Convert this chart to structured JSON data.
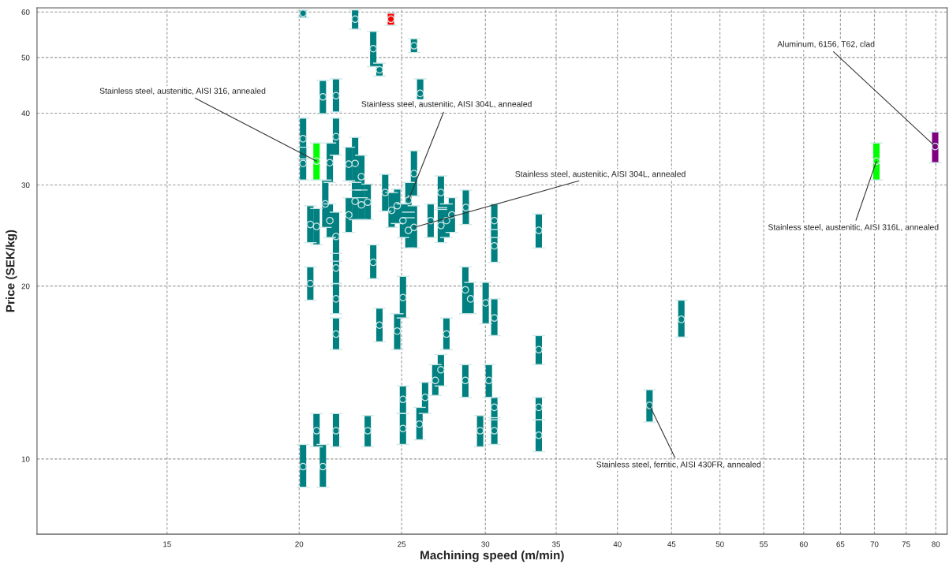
{
  "chart_data": {
    "type": "scatter",
    "xlabel": "Machining speed (m/min)",
    "ylabel": "Price (SEK/kg)",
    "log": "xy",
    "grid": true,
    "legend": false,
    "marker": "circle",
    "xlim": [
      11.3,
      82
    ],
    "xticks": [
      15,
      20,
      25,
      30,
      35,
      40,
      45,
      50,
      55,
      60,
      65,
      70,
      75,
      80
    ],
    "ylim": [
      7.4,
      61
    ],
    "yticks": [
      10,
      20,
      30,
      40,
      50,
      60
    ],
    "series": [
      {
        "color": "#008080",
        "x": [
          20.17,
          22.59,
          23.5,
          25.68,
          23.82,
          21.06,
          21.67,
          26.03,
          20.17,
          20.17,
          21.67,
          21.38,
          22.59,
          22.59,
          22.28,
          22.9,
          22.9,
          23.22,
          21.17,
          20.49,
          20.77,
          21.38,
          21.67,
          22.28,
          24.12,
          24.46,
          24.76,
          25.07,
          25.37,
          25.37,
          25.68,
          25.68,
          26.63,
          27.23,
          27.23,
          27.56,
          27.89,
          28.75,
          30.59,
          30.59,
          33.7,
          23.5,
          21.67,
          21.67,
          21.67,
          20.49,
          25.07,
          23.82,
          24.76,
          28.72,
          29.05,
          30.02,
          30.59,
          27.56,
          33.7,
          27.23,
          26.9,
          28.72,
          30.23,
          26.31,
          25.07,
          25.07,
          25.99,
          30.59,
          30.59,
          33.7,
          33.7,
          20.77,
          21.67,
          23.22,
          29.66,
          20.17,
          21.06,
          45.97,
          42.89
        ],
        "values": [
          59.7,
          58.3,
          51.8,
          52.4,
          47.6,
          42.7,
          42.9,
          43.3,
          36.1,
          32.7,
          36.4,
          32.8,
          32.7,
          28.1,
          32.6,
          31.0,
          27.7,
          28.0,
          27.8,
          25.6,
          25.4,
          26.0,
          24.4,
          26.6,
          29.1,
          27.1,
          27.6,
          26.0,
          28.2,
          25.0,
          31.4,
          25.3,
          26.0,
          29.1,
          25.5,
          26.0,
          26.6,
          27.4,
          26.0,
          23.5,
          25.0,
          22.0,
          21.5,
          19.0,
          16.5,
          20.2,
          19.1,
          17.1,
          16.7,
          19.7,
          19.0,
          18.7,
          17.6,
          16.5,
          15.5,
          14.3,
          13.7,
          13.7,
          13.7,
          12.8,
          12.7,
          11.3,
          11.5,
          12.3,
          11.2,
          12.3,
          11.0,
          11.2,
          11.2,
          11.2,
          11.2,
          9.7,
          9.7,
          17.5,
          12.4
        ],
        "errors": [
          [
            58.7,
            60.5
          ],
          [
            56.0,
            60.5
          ],
          [
            48.2,
            55.5
          ],
          [
            51.0,
            53.9
          ],
          [
            46.4,
            48.9
          ],
          [
            39.9,
            45.6
          ],
          [
            40.2,
            45.9
          ],
          [
            40.9,
            45.9
          ],
          [
            33.3,
            39.2
          ],
          [
            30.6,
            34.9
          ],
          [
            33.8,
            39.2
          ],
          [
            30.3,
            35.5
          ],
          [
            29.4,
            36.3
          ],
          [
            26.1,
            30.3
          ],
          [
            30.5,
            34.9
          ],
          [
            28.5,
            33.8
          ],
          [
            26.1,
            29.4
          ],
          [
            26.1,
            30.1
          ],
          [
            25.3,
            30.6
          ],
          [
            23.8,
            27.6
          ],
          [
            23.6,
            27.3
          ],
          [
            24.3,
            27.8
          ],
          [
            22.1,
            26.9
          ],
          [
            24.8,
            28.5
          ],
          [
            27.0,
            31.3
          ],
          [
            25.3,
            29.1
          ],
          [
            25.7,
            29.5
          ],
          [
            24.3,
            27.8
          ],
          [
            26.3,
            30.3
          ],
          [
            23.3,
            26.9
          ],
          [
            28.7,
            34.4
          ],
          [
            23.3,
            27.6
          ],
          [
            24.3,
            27.8
          ],
          [
            27.2,
            31.1
          ],
          [
            23.8,
            27.4
          ],
          [
            24.3,
            27.8
          ],
          [
            24.8,
            28.5
          ],
          [
            25.6,
            29.4
          ],
          [
            24.3,
            27.8
          ],
          [
            22.0,
            25.1
          ],
          [
            23.3,
            26.7
          ],
          [
            20.6,
            23.6
          ],
          [
            20.2,
            22.8
          ],
          [
            17.9,
            20.2
          ],
          [
            15.5,
            17.6
          ],
          [
            18.9,
            21.6
          ],
          [
            17.6,
            20.8
          ],
          [
            16.0,
            18.3
          ],
          [
            15.5,
            17.9
          ],
          [
            17.9,
            21.6
          ],
          [
            17.9,
            20.3
          ],
          [
            17.2,
            20.3
          ],
          [
            16.4,
            19.0
          ],
          [
            15.5,
            17.6
          ],
          [
            14.6,
            16.4
          ],
          [
            13.4,
            15.2
          ],
          [
            12.9,
            14.6
          ],
          [
            12.8,
            14.6
          ],
          [
            12.8,
            14.6
          ],
          [
            12.0,
            13.6
          ],
          [
            12.0,
            13.4
          ],
          [
            10.6,
            12.0
          ],
          [
            10.8,
            12.3
          ],
          [
            11.7,
            12.8
          ],
          [
            10.6,
            11.8
          ],
          [
            11.7,
            12.8
          ],
          [
            10.3,
            11.7
          ],
          [
            10.5,
            12.0
          ],
          [
            10.5,
            12.0
          ],
          [
            10.5,
            11.9
          ],
          [
            10.5,
            11.9
          ],
          [
            8.93,
            10.6
          ],
          [
            8.93,
            10.6
          ],
          [
            16.3,
            18.9
          ],
          [
            11.6,
            13.2
          ]
        ]
      },
      {
        "color": "#00ff00",
        "x": [
          20.77,
          70.3
        ],
        "values": [
          33.0,
          33.0
        ],
        "errors": [
          [
            30.6,
            35.5
          ],
          [
            30.6,
            35.5
          ]
        ]
      },
      {
        "color": "#ff0000",
        "x": [
          24.42
        ],
        "values": [
          58.3
        ],
        "errors": [
          [
            56.9,
            59.7
          ]
        ]
      },
      {
        "color": "#800080",
        "x": [
          79.9
        ],
        "values": [
          35.0
        ],
        "errors": [
          [
            32.8,
            37.1
          ]
        ]
      }
    ],
    "annotations": [
      {
        "text": "Aluminum, 6156, T62, clad",
        "x": 79.9,
        "y": 35.0
      },
      {
        "text": "Stainless steel, austenitic, AISI 316, annealed",
        "x": 20.77,
        "y": 33.0
      },
      {
        "text": "Stainless steel, austenitic, AISI 304L, annealed",
        "x": 25.37,
        "y": 28.2
      },
      {
        "text": "Stainless steel, austenitic, AISI 304L, annealed",
        "x": 25.68,
        "y": 25.3
      },
      {
        "text": "Stainless steel, austenitic, AISI 316L, annealed",
        "x": 70.3,
        "y": 33.0
      },
      {
        "text": "Stainless steel, ferritic, AISI 430FR, annealed",
        "x": 42.89,
        "y": 12.4
      }
    ]
  }
}
